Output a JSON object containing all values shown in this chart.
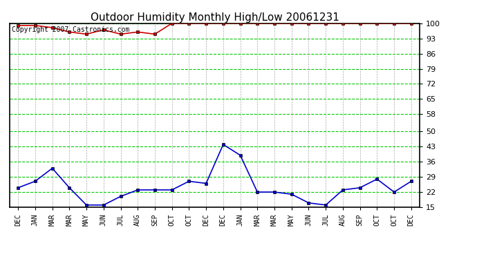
{
  "title": "Outdoor Humidity Monthly High/Low 20061231",
  "copyright": "Copyright 2007 Castronics.com",
  "x_labels": [
    "DEC",
    "JAN",
    "MAR",
    "MAR",
    "MAY",
    "JUN",
    "JUL",
    "AUG",
    "SEP",
    "OCT",
    "OCT",
    "DEC",
    "DEC",
    "JAN",
    "MAR",
    "MAR",
    "MAY",
    "JUN",
    "JUL",
    "AUG",
    "SEP",
    "OCT",
    "OCT",
    "DEC"
  ],
  "high_values": [
    99,
    99,
    98,
    96,
    95,
    97,
    95,
    96,
    95,
    100,
    100,
    100,
    100,
    100,
    100,
    100,
    100,
    100,
    100,
    100,
    100,
    100,
    100,
    100
  ],
  "low_values": [
    24,
    27,
    33,
    24,
    16,
    16,
    20,
    23,
    23,
    23,
    27,
    26,
    44,
    39,
    22,
    22,
    21,
    17,
    16,
    23,
    24,
    28,
    22,
    27
  ],
  "y_ticks": [
    15,
    22,
    29,
    36,
    43,
    50,
    58,
    65,
    72,
    79,
    86,
    93,
    100
  ],
  "y_min": 15,
  "y_max": 100,
  "high_color": "#cc0000",
  "low_color": "#0000cc",
  "grid_h_color": "#00cc00",
  "grid_v_color": "#aaaaaa",
  "bg_color": "#ffffff",
  "border_color": "#000000",
  "marker": "s",
  "marker_size": 3.5,
  "title_fontsize": 11,
  "tick_fontsize": 8,
  "copyright_fontsize": 7
}
